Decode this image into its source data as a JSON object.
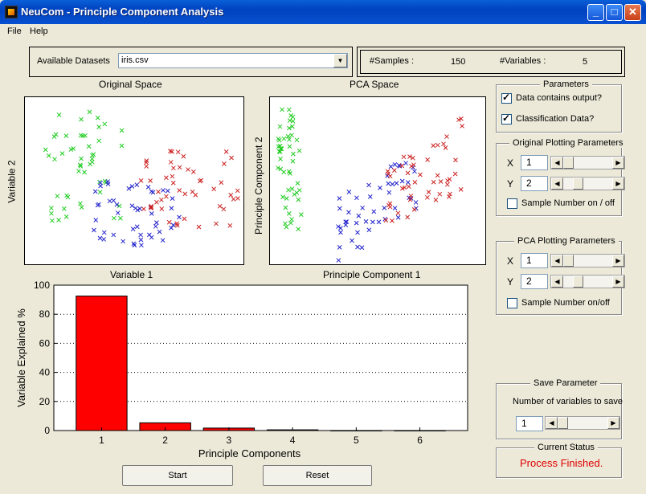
{
  "window": {
    "title": "NeuCom - Principle Component Analysis",
    "minimize": "_",
    "maximize": "□",
    "close": "✕"
  },
  "menu": {
    "file": "File",
    "help": "Help"
  },
  "dataset": {
    "label": "Available Datasets",
    "value": "iris.csv",
    "samples_label": "#Samples :",
    "samples_value": "150",
    "variables_label": "#Variables :",
    "variables_value": "5"
  },
  "original_space": {
    "title": "Original Space",
    "xlabel": "Variable 1",
    "ylabel": "Variable 2"
  },
  "pca_space": {
    "title": "PCA Space",
    "xlabel": "Principle Component 1",
    "ylabel": "Principle Component 2"
  },
  "parameters": {
    "title": "Parameters",
    "contains_output": "Data contains output?",
    "contains_output_checked": true,
    "classification": "Classification Data?",
    "classification_checked": true
  },
  "original_plotting": {
    "title": "Original Plotting Parameters",
    "x_label": "X",
    "x_value": "1",
    "y_label": "Y",
    "y_value": "2",
    "sample_number": "Sample Number on / off"
  },
  "pca_plotting": {
    "title": "PCA Plotting Parameters",
    "x_label": "X",
    "x_value": "1",
    "y_label": "Y",
    "y_value": "2",
    "sample_number": "Sample Number on/off"
  },
  "save": {
    "title": "Save Parameter",
    "label": "Number of variables to save",
    "value": "1"
  },
  "status": {
    "title": "Current Status",
    "text": "Process Finished.",
    "color": "#e00000"
  },
  "buttons": {
    "start": "Start",
    "reset": "Reset"
  },
  "colors": {
    "class1": "#22cc22",
    "class2": "#2222cc",
    "class3": "#cc2222",
    "bar": "#ff0000"
  },
  "chart_data": {
    "type": "bar",
    "categories": [
      "1",
      "2",
      "3",
      "4",
      "5",
      "6"
    ],
    "values": [
      92.5,
      5.3,
      1.7,
      0.5,
      0,
      0
    ],
    "xlabel": "Principle Components",
    "ylabel": "Variable Explained %",
    "ylim": [
      0,
      100
    ],
    "yticks": [
      "0",
      "20",
      "40",
      "60",
      "80",
      "100"
    ],
    "grid": true
  }
}
